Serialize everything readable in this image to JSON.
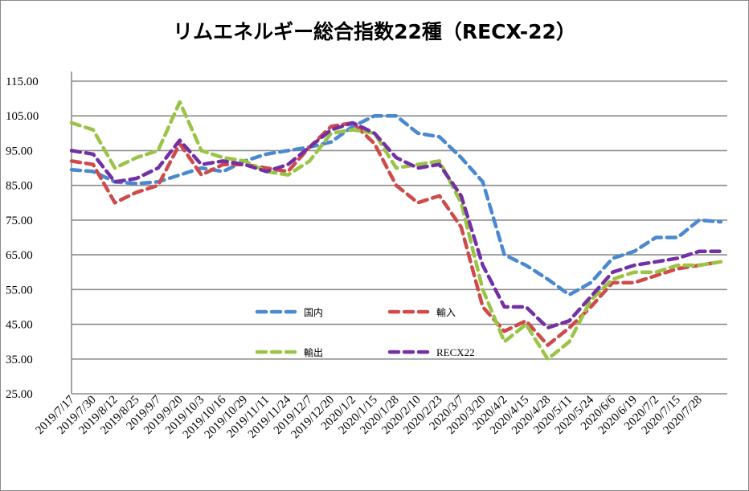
{
  "chart_data": {
    "type": "line",
    "title": "リムエネルギー総合指数22種（RECX-22）",
    "xlabel": "",
    "ylabel": "",
    "ylim": [
      25,
      115
    ],
    "yticks": [
      "25.00",
      "35.00",
      "45.00",
      "55.00",
      "65.00",
      "75.00",
      "85.00",
      "95.00",
      "105.00",
      "115.00"
    ],
    "grid": true,
    "legend_position": "bottom-center-inside",
    "categories": [
      "2019/7/17",
      "2019/7/30",
      "2019/8/12",
      "2019/8/25",
      "2019/9/7",
      "2019/9/20",
      "2019/10/3",
      "2019/10/16",
      "2019/10/29",
      "2019/11/11",
      "2019/11/24",
      "2019/12/7",
      "2019/12/20",
      "2020/1/2",
      "2020/1/15",
      "2020/1/28",
      "2020/2/10",
      "2020/2/23",
      "2020/3/7",
      "2020/3/20",
      "2020/4/2",
      "2020/4/15",
      "2020/4/28",
      "2020/5/11",
      "2020/5/24",
      "2020/6/6",
      "2020/6/19",
      "2020/7/2",
      "2020/7/15",
      "2020/7/28",
      ""
    ],
    "series": [
      {
        "name": "国内",
        "color": "#4a89cf",
        "values": [
          89.5,
          89,
          86,
          85.5,
          86,
          88,
          90,
          89,
          92,
          94,
          95,
          96,
          97.5,
          102,
          105,
          105,
          100,
          99,
          93,
          86,
          65,
          62,
          58,
          53.5,
          57,
          64,
          66,
          70,
          70,
          75,
          74.5
        ]
      },
      {
        "name": "輸入",
        "color": "#cf4a4a",
        "values": [
          92,
          91,
          80,
          83,
          85,
          97,
          88,
          91,
          91,
          90,
          89,
          96,
          102,
          103,
          97,
          85,
          80,
          82,
          73,
          50,
          43,
          46,
          39,
          44,
          50,
          57,
          57,
          59,
          61,
          62,
          63
        ]
      },
      {
        "name": "輸出",
        "color": "#9bc447",
        "values": [
          103,
          101,
          90,
          93,
          95,
          109,
          95,
          93,
          92,
          89,
          88,
          92,
          100,
          101,
          100,
          90,
          91,
          92,
          80,
          55,
          40,
          45,
          35,
          40,
          52,
          58,
          60,
          60,
          62,
          62,
          63
        ]
      },
      {
        "name": "RECX22",
        "color": "#7330a3",
        "values": [
          95,
          94,
          86,
          87,
          90,
          98,
          91,
          92,
          91,
          89,
          91,
          96,
          101,
          103,
          100,
          93,
          90,
          91,
          82,
          62,
          50,
          50,
          44,
          46,
          53,
          60,
          62,
          63,
          64,
          66,
          66
        ]
      }
    ]
  }
}
